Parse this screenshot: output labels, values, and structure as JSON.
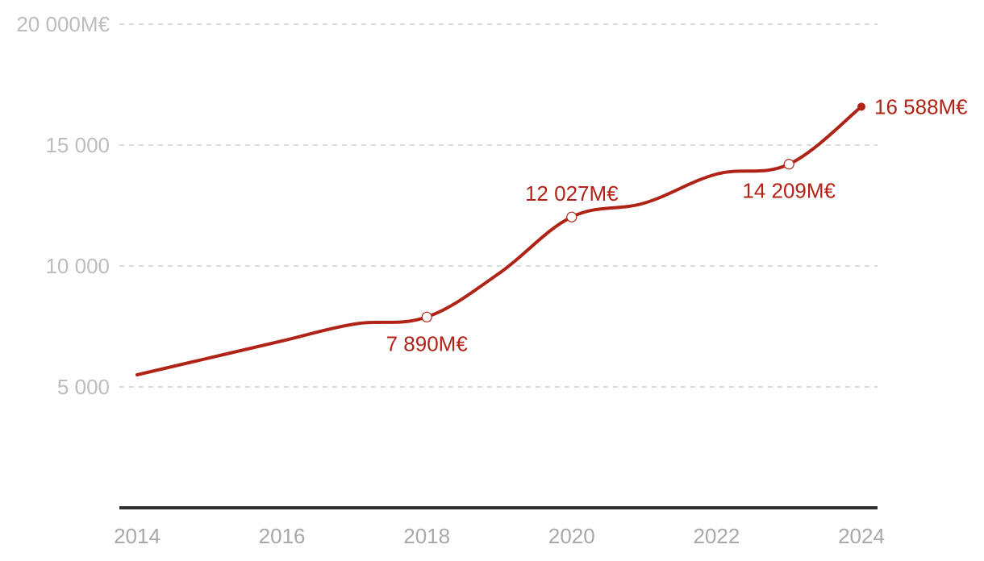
{
  "chart_data": {
    "type": "line",
    "series": [
      {
        "x": [
          2014,
          2015,
          2016,
          2017,
          2018,
          2019,
          2020,
          2021,
          2022,
          2023,
          2024
        ],
        "values": [
          5500,
          6200,
          6900,
          7600,
          7890,
          9700,
          12027,
          12600,
          13800,
          14209,
          16588
        ]
      }
    ],
    "xlim": [
      2014,
      2024
    ],
    "ylim": [
      0,
      20000
    ],
    "x_ticks": [
      2014,
      2016,
      2018,
      2020,
      2022,
      2024
    ],
    "x_tick_labels": [
      "2014",
      "2016",
      "2018",
      "2020",
      "2022",
      "2024"
    ],
    "y_ticks": [
      5000,
      10000,
      15000,
      20000
    ],
    "y_tick_labels": [
      "5 000",
      "10 000",
      "15 000",
      "20 000M€"
    ],
    "grid": true,
    "annotations": [
      {
        "x": 2018,
        "y": 7890,
        "label": "7 890M€",
        "position": "below",
        "marker": "open"
      },
      {
        "x": 2020,
        "y": 12027,
        "label": "12 027M€",
        "position": "above",
        "marker": "open"
      },
      {
        "x": 2023,
        "y": 14209,
        "label": "14 209M€",
        "position": "below",
        "marker": "open"
      },
      {
        "x": 2024,
        "y": 16588,
        "label": "16 588M€",
        "position": "right",
        "marker": "filled"
      }
    ],
    "colors": {
      "line": "#b02418",
      "grid": "#cfcfcf",
      "axis": "#2f2f2f",
      "tick_text": "#bdbdbd"
    }
  }
}
